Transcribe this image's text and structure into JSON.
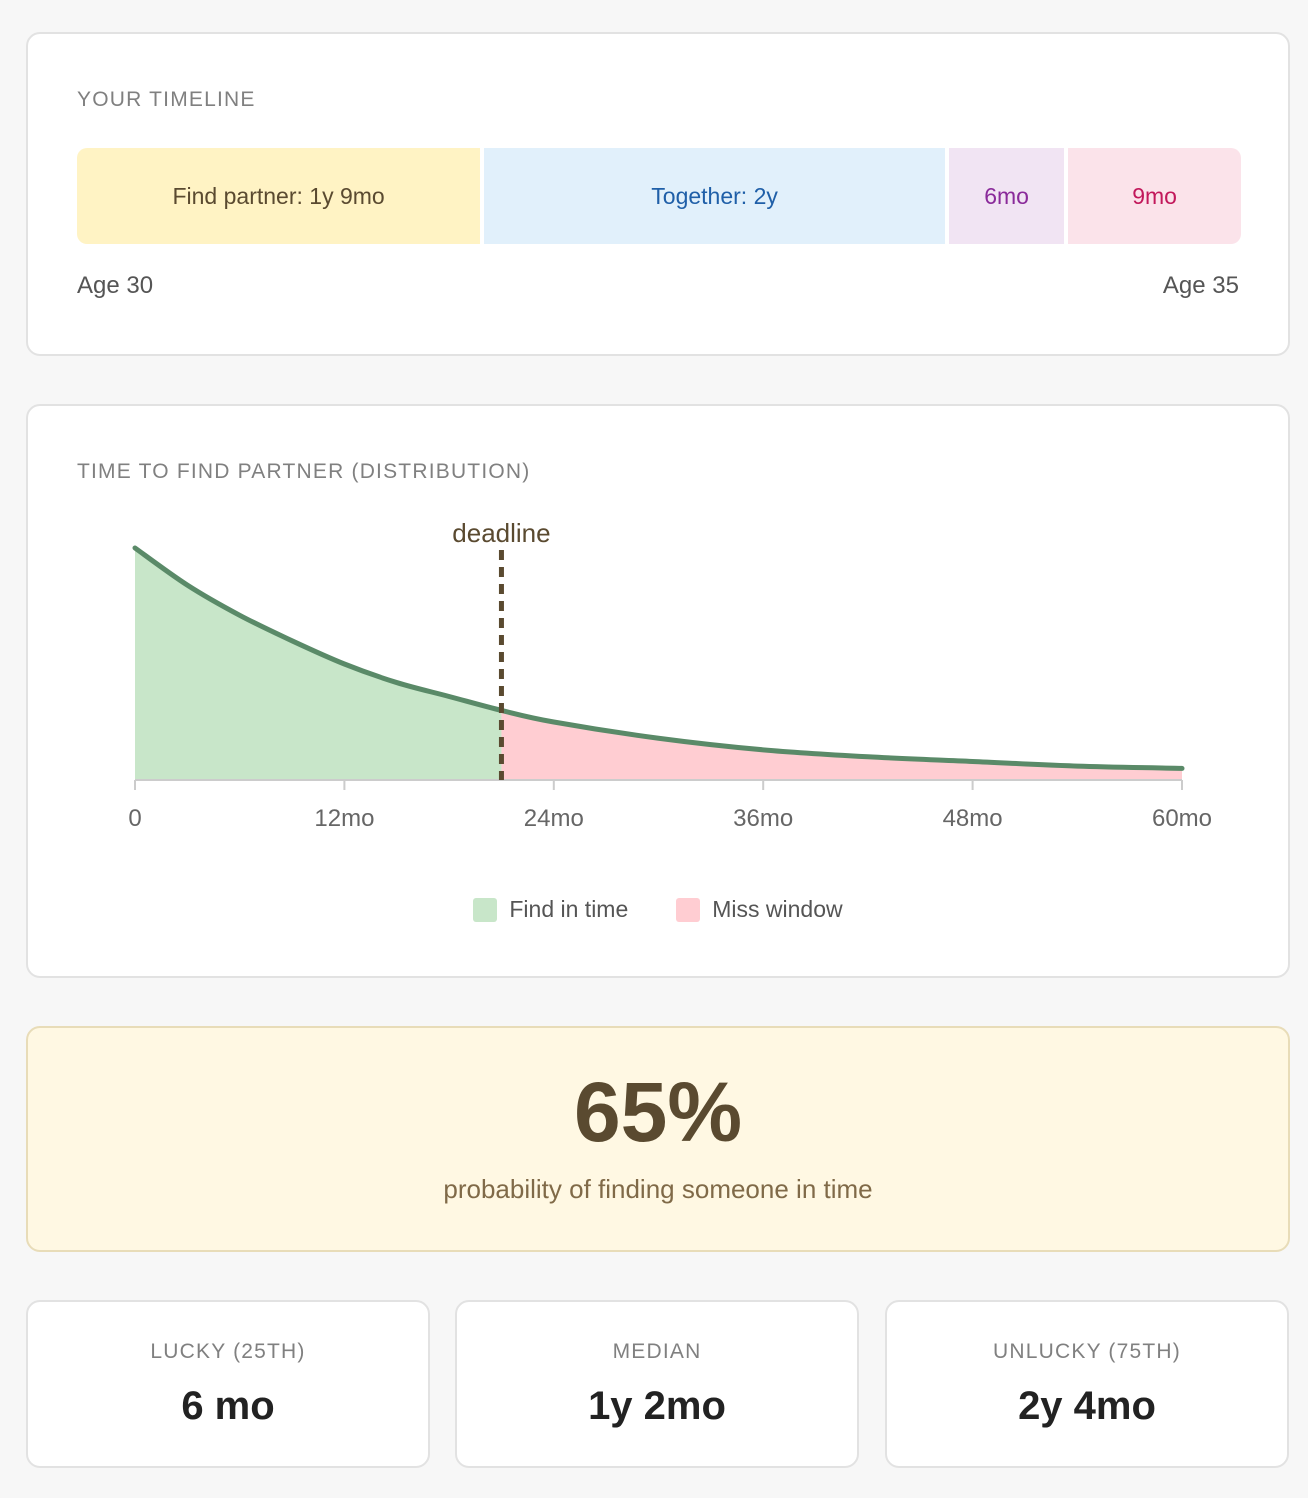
{
  "timeline": {
    "label": "YOUR TIMELINE",
    "segments": [
      {
        "label": "Find partner: 1y 9mo",
        "months": 21,
        "bg": "#fff3c4",
        "color": "#5a4a30"
      },
      {
        "label": "Together: 2y",
        "months": 24,
        "bg": "#e1f0fb",
        "color": "#1f5fa8"
      },
      {
        "label": "6mo",
        "months": 6,
        "bg": "#f1e4f3",
        "color": "#8a2a9a"
      },
      {
        "label": "9mo",
        "months": 9,
        "bg": "#fbe3ea",
        "color": "#c2185b"
      }
    ],
    "start_label": "Age 30",
    "end_label": "Age 35"
  },
  "distribution": {
    "label": "TIME TO FIND PARTNER (DISTRIBUTION)",
    "deadline_label": "deadline",
    "legend": {
      "in_time": "Find in time",
      "miss": "Miss window"
    }
  },
  "chart_data": {
    "type": "area",
    "title": "TIME TO FIND PARTNER (DISTRIBUTION)",
    "xlabel": "",
    "ylabel": "",
    "xlim": [
      0,
      60
    ],
    "x_ticks": [
      0,
      12,
      24,
      36,
      48,
      60
    ],
    "x_tick_labels": [
      "0",
      "12mo",
      "24mo",
      "36mo",
      "48mo",
      "60mo"
    ],
    "deadline_x": 21,
    "deadline_label": "deadline",
    "series": [
      {
        "name": "Find in time",
        "x": [
          0,
          3,
          6,
          9,
          12,
          15,
          18,
          21
        ],
        "y": [
          1.0,
          0.84,
          0.71,
          0.6,
          0.5,
          0.42,
          0.36,
          0.3
        ],
        "color": "#c8e6c9"
      },
      {
        "name": "Miss window",
        "x": [
          21,
          24,
          30,
          36,
          42,
          48,
          54,
          60
        ],
        "y": [
          0.3,
          0.25,
          0.18,
          0.13,
          0.1,
          0.08,
          0.06,
          0.05
        ],
        "color": "#ffcdd2"
      }
    ],
    "line_color": "#5a8a68",
    "deadline_color": "#5a4a30"
  },
  "probability": {
    "value": "65%",
    "caption": "probability of finding someone in time"
  },
  "stats": [
    {
      "label": "LUCKY (25TH)",
      "value": "6 mo"
    },
    {
      "label": "MEDIAN",
      "value": "1y 2mo"
    },
    {
      "label": "UNLUCKY (75TH)",
      "value": "2y 4mo"
    }
  ]
}
